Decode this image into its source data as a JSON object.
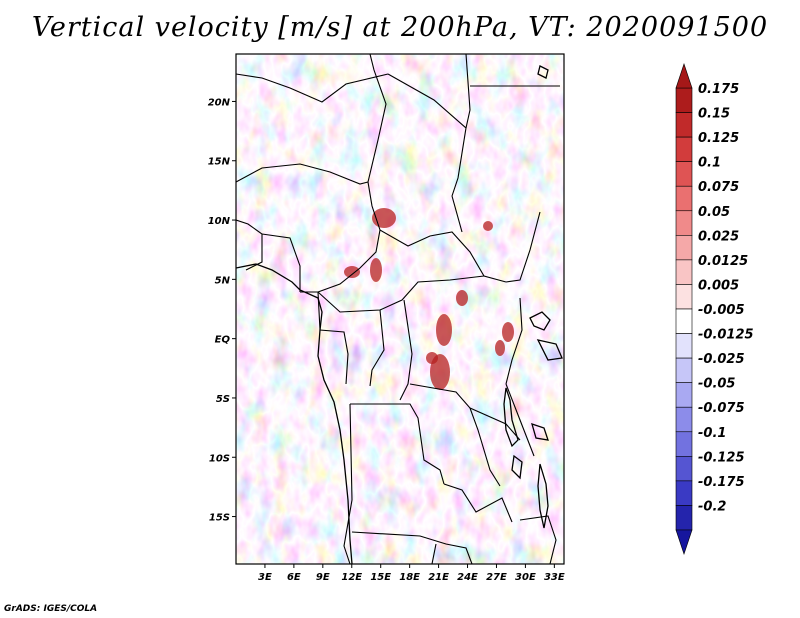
{
  "title": "Vertical velocity [m/s] at 200hPa, VT: 2020091500",
  "credit": "GrADS: IGES/COLA",
  "map": {
    "lon_range": [
      0,
      34
    ],
    "lat_range": [
      -19,
      24
    ],
    "lat_ticks": [
      {
        "label": "20N",
        "lat": 20
      },
      {
        "label": "15N",
        "lat": 15
      },
      {
        "label": "10N",
        "lat": 10
      },
      {
        "label": "5N",
        "lat": 5
      },
      {
        "label": "EQ",
        "lat": 0
      },
      {
        "label": "5S",
        "lat": -5
      },
      {
        "label": "10S",
        "lat": -10
      },
      {
        "label": "15S",
        "lat": -15
      }
    ],
    "lon_ticks": [
      {
        "label": "3E",
        "lon": 3
      },
      {
        "label": "6E",
        "lon": 6
      },
      {
        "label": "9E",
        "lon": 9
      },
      {
        "label": "12E",
        "lon": 12
      },
      {
        "label": "15E",
        "lon": 15
      },
      {
        "label": "18E",
        "lon": 18
      },
      {
        "label": "21E",
        "lon": 21
      },
      {
        "label": "24E",
        "lon": 24
      },
      {
        "label": "27E",
        "lon": 27
      },
      {
        "label": "30E",
        "lon": 30
      },
      {
        "label": "33E",
        "lon": 33
      }
    ]
  },
  "colorbar": {
    "levels": [
      {
        "label": "0.175",
        "color": "#ad1c1c"
      },
      {
        "label": "0.15",
        "color": "#c12a2a"
      },
      {
        "label": "0.125",
        "color": "#d23c3c"
      },
      {
        "label": "0.1",
        "color": "#df5454"
      },
      {
        "label": "0.075",
        "color": "#ea7070"
      },
      {
        "label": "0.05",
        "color": "#f08a8a"
      },
      {
        "label": "0.025",
        "color": "#f5a8a8"
      },
      {
        "label": "0.0125",
        "color": "#f9c5c5"
      },
      {
        "label": "0.005",
        "color": "#fce1e1"
      },
      {
        "label": "-0.005",
        "color": "#ffffff"
      },
      {
        "label": "-0.0125",
        "color": "#e2e2fc"
      },
      {
        "label": "-0.025",
        "color": "#c6c6f8"
      },
      {
        "label": "-0.05",
        "color": "#a9a9f2"
      },
      {
        "label": "-0.075",
        "color": "#8c8cea"
      },
      {
        "label": "-0.1",
        "color": "#7272e0"
      },
      {
        "label": "-0.125",
        "color": "#5555d2"
      },
      {
        "label": "-0.175",
        "color": "#3a3ac4"
      },
      {
        "label": "-0.2",
        "color": "#2424ac"
      }
    ],
    "top_arrow_color": "#a51818",
    "bottom_arrow_color": "#16169e"
  }
}
